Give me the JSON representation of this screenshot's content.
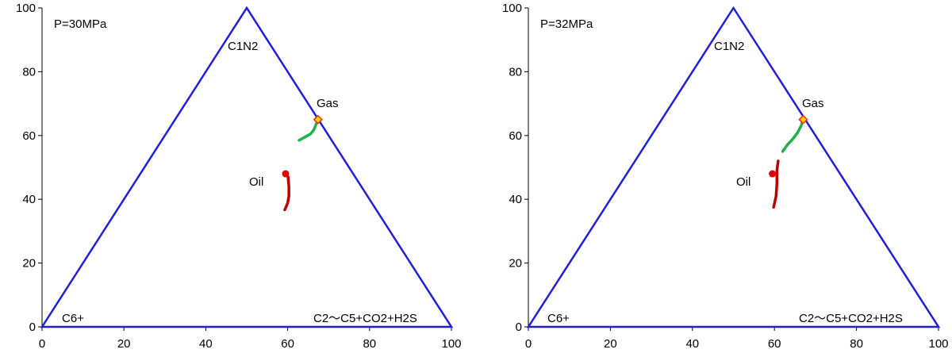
{
  "chart_data": [
    {
      "type": "scatter",
      "subtype": "ternary-diagram",
      "xlim": [
        0,
        100
      ],
      "ylim": [
        0,
        100
      ],
      "x_ticks": [
        0,
        20,
        40,
        60,
        80,
        100
      ],
      "y_ticks": [
        0,
        20,
        40,
        60,
        80,
        100
      ],
      "grid": false,
      "annotations": {
        "pressure": "P=30MPa",
        "apex_top": "C1N2",
        "apex_left": "C6+",
        "apex_right": "C2～C5+CO2+H2S",
        "gas": "Gas",
        "oil": "Oil"
      },
      "triangle": [
        [
          0,
          0
        ],
        [
          50,
          100
        ],
        [
          100,
          0
        ]
      ],
      "gas_point": [
        67.4,
        65.0
      ],
      "oil_point": [
        59.5,
        48.0
      ],
      "series": [
        {
          "x": [
            62.8,
            64.2,
            65.6,
            66.4,
            66.9,
            67.4
          ],
          "y": [
            58.5,
            59.5,
            60.5,
            61.8,
            63.4,
            65.0
          ]
        },
        {
          "x": [
            60.1,
            60.3,
            60.3,
            60.0,
            59.3
          ],
          "y": [
            47.0,
            44.0,
            41.0,
            38.8,
            36.7
          ]
        }
      ]
    },
    {
      "type": "scatter",
      "subtype": "ternary-diagram",
      "xlim": [
        0,
        100
      ],
      "ylim": [
        0,
        100
      ],
      "x_ticks": [
        0,
        20,
        40,
        60,
        80,
        100
      ],
      "y_ticks": [
        0,
        20,
        40,
        60,
        80,
        100
      ],
      "grid": false,
      "annotations": {
        "pressure": "P=32MPa",
        "apex_top": "C1N2",
        "apex_left": "C6+",
        "apex_right": "C2～C5+CO2+H2S",
        "gas": "Gas",
        "oil": "Oil"
      },
      "triangle": [
        [
          0,
          0
        ],
        [
          50,
          100
        ],
        [
          100,
          0
        ]
      ],
      "gas_point": [
        67.0,
        65.0
      ],
      "oil_point": [
        59.5,
        48.0
      ],
      "series": [
        {
          "x": [
            67.0,
            66.5,
            65.6,
            64.4,
            63.1,
            62.0
          ],
          "y": [
            65.0,
            63.0,
            60.8,
            58.8,
            57.0,
            55.0
          ]
        },
        {
          "x": [
            60.9,
            60.6,
            60.6,
            60.4,
            59.8
          ],
          "y": [
            52.0,
            49.0,
            45.0,
            41.0,
            37.5
          ]
        }
      ]
    }
  ],
  "colors": {
    "triangle": "#1f1fd9",
    "gas_curve": "#20b04b",
    "oil_curve": "#c00000",
    "oil_marker": "#e00000",
    "gas_marker_fill": "#ffd700",
    "gas_marker_stroke": "#ff2a00"
  }
}
